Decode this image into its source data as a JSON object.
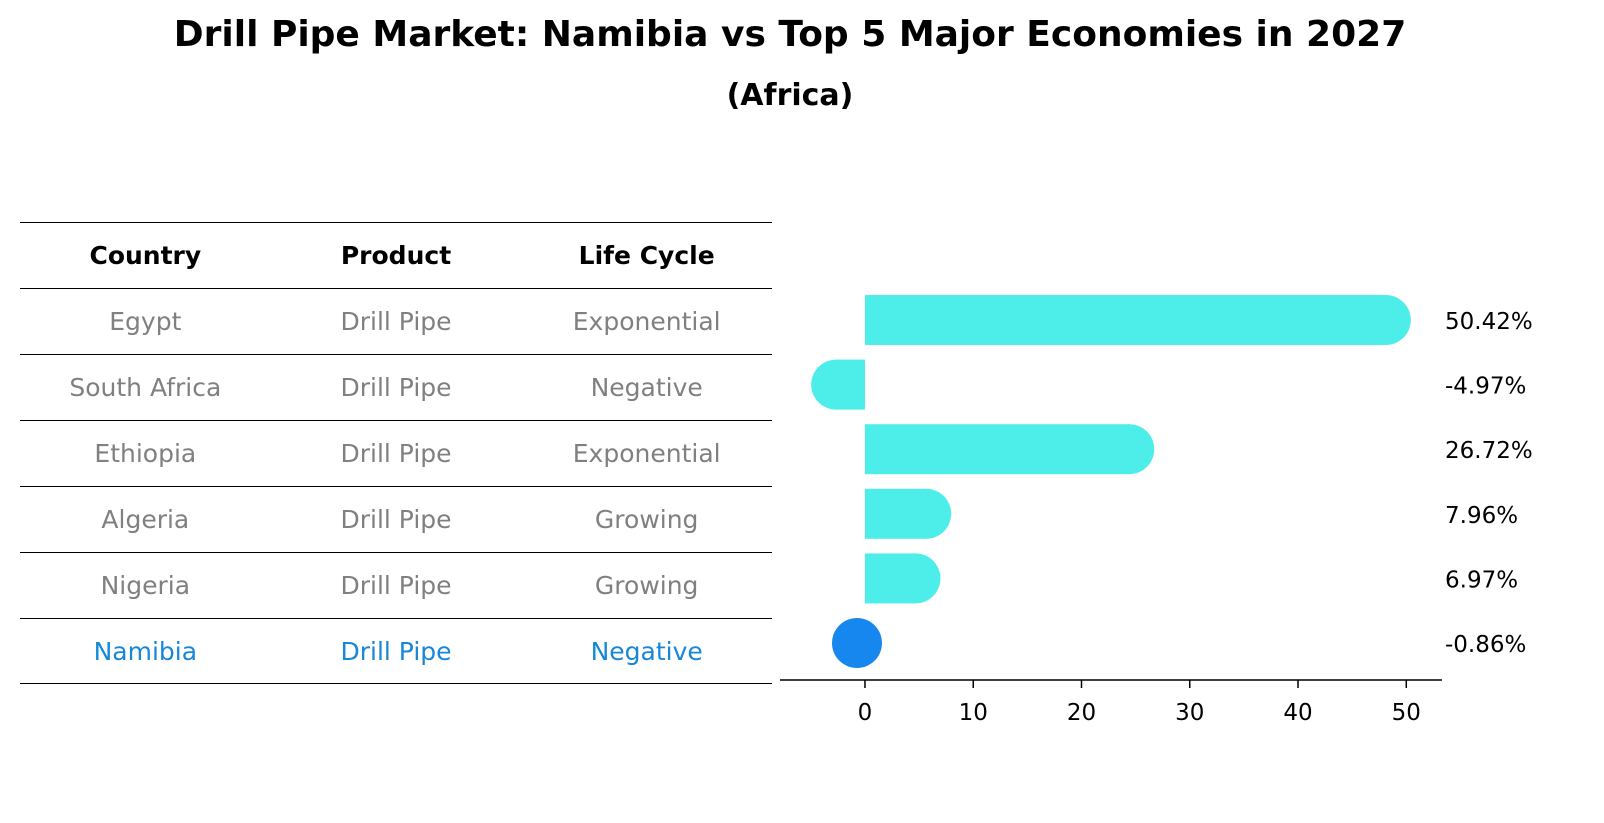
{
  "title": "Drill Pipe Market: Namibia vs Top 5 Major Economies in 2027",
  "subtitle": "(Africa)",
  "colors": {
    "others_bar": "#4DEEEA",
    "highlight_bar": "#1787F0",
    "others_text": "#808080",
    "highlight_text": "#1787D8"
  },
  "table": {
    "headers": [
      "Country",
      "Product",
      "Life Cycle"
    ],
    "rows": [
      {
        "country": "Egypt",
        "product": "Drill Pipe",
        "life_cycle": "Exponential"
      },
      {
        "country": "South Africa",
        "product": "Drill Pipe",
        "life_cycle": "Negative"
      },
      {
        "country": "Ethiopia",
        "product": "Drill Pipe",
        "life_cycle": "Exponential"
      },
      {
        "country": "Algeria",
        "product": "Drill Pipe",
        "life_cycle": "Growing"
      },
      {
        "country": "Nigeria",
        "product": "Drill Pipe",
        "life_cycle": "Growing"
      },
      {
        "country": "Namibia",
        "product": "Drill Pipe",
        "life_cycle": "Negative"
      }
    ]
  },
  "chart_data": {
    "type": "bar",
    "orientation": "horizontal",
    "categories": [
      "Egypt",
      "South Africa",
      "Ethiopia",
      "Algeria",
      "Nigeria",
      "Namibia"
    ],
    "values": [
      50.42,
      -4.97,
      26.72,
      7.96,
      6.97,
      -0.86
    ],
    "value_labels": [
      "50.42%",
      "-4.97%",
      "26.72%",
      "7.96%",
      "6.97%",
      "-0.86%"
    ],
    "highlight": "Namibia",
    "xlim": [
      -7.85,
      53.3
    ],
    "xticks": [
      0,
      10,
      20,
      30,
      40,
      50
    ],
    "xtick_labels": [
      "0",
      "10",
      "20",
      "30",
      "40",
      "50"
    ],
    "xlabel": "",
    "ylabel": "",
    "grid": false
  }
}
